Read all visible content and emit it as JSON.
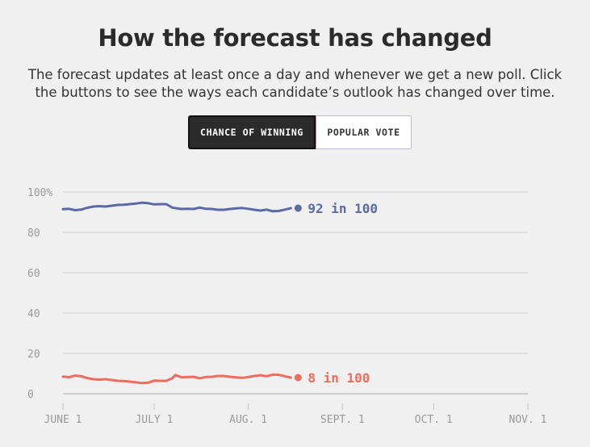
{
  "title": "How the forecast has changed",
  "subtitle": "The forecast updates at least once a day and whenever we get a new poll. Click the buttons to see the ways each candidate’s outlook has changed over time.",
  "toggle": {
    "options": [
      "CHANCE OF WINNING",
      "POPULAR VOTE"
    ],
    "selected": "CHANCE OF WINNING"
  },
  "colors": {
    "blue": "#5a6aa8",
    "red": "#ef6b5e",
    "grid": "#d6d6d6"
  },
  "chart_data": {
    "type": "line",
    "title": "",
    "xlabel": "",
    "ylabel": "",
    "ylim": [
      0,
      100
    ],
    "xlim": [
      "2020-06-01",
      "2020-11-01"
    ],
    "y_ticks": [
      0,
      20,
      40,
      60,
      80,
      100
    ],
    "y_tick_labels": [
      "0",
      "20",
      "40",
      "60",
      "80",
      "100%"
    ],
    "x_ticks": [
      "2020-06-01",
      "2020-07-01",
      "2020-08-01",
      "2020-09-01",
      "2020-10-01",
      "2020-11-01"
    ],
    "x_tick_labels": [
      "JUNE 1",
      "JULY 1",
      "AUG. 1",
      "SEPT. 1",
      "OCT. 1",
      "NOV. 1"
    ],
    "grid": true,
    "legend": "none",
    "series": [
      {
        "color": "#5a6aa8",
        "end_label": "92 in 100",
        "x": [
          "2020-06-01",
          "2020-06-03",
          "2020-06-05",
          "2020-06-07",
          "2020-06-09",
          "2020-06-11",
          "2020-06-13",
          "2020-06-15",
          "2020-06-17",
          "2020-06-19",
          "2020-06-21",
          "2020-06-23",
          "2020-06-25",
          "2020-06-27",
          "2020-06-29",
          "2020-07-01",
          "2020-07-03",
          "2020-07-05",
          "2020-07-07",
          "2020-07-09",
          "2020-07-10",
          "2020-07-12",
          "2020-07-14",
          "2020-07-16",
          "2020-07-18",
          "2020-07-20",
          "2020-07-22",
          "2020-07-24",
          "2020-07-26",
          "2020-07-28",
          "2020-07-30",
          "2020-08-01",
          "2020-08-03",
          "2020-08-05",
          "2020-08-07",
          "2020-08-09",
          "2020-08-11",
          "2020-08-13",
          "2020-08-15"
        ],
        "values": [
          91.5,
          91.7,
          91.0,
          91.3,
          92.2,
          92.8,
          93.0,
          92.8,
          93.2,
          93.6,
          93.7,
          94.0,
          94.3,
          94.7,
          94.5,
          93.9,
          94.0,
          94.0,
          92.3,
          91.8,
          91.6,
          91.7,
          91.6,
          92.3,
          91.7,
          91.6,
          91.2,
          91.2,
          91.6,
          91.9,
          92.1,
          91.7,
          91.2,
          90.8,
          91.3,
          90.5,
          90.6,
          91.3,
          92.0
        ]
      },
      {
        "color": "#ef6b5e",
        "end_label": "8 in 100",
        "x": [
          "2020-06-01",
          "2020-06-03",
          "2020-06-05",
          "2020-06-07",
          "2020-06-09",
          "2020-06-11",
          "2020-06-13",
          "2020-06-15",
          "2020-06-17",
          "2020-06-19",
          "2020-06-21",
          "2020-06-23",
          "2020-06-25",
          "2020-06-27",
          "2020-06-29",
          "2020-07-01",
          "2020-07-03",
          "2020-07-05",
          "2020-07-07",
          "2020-07-08",
          "2020-07-10",
          "2020-07-12",
          "2020-07-14",
          "2020-07-16",
          "2020-07-18",
          "2020-07-20",
          "2020-07-22",
          "2020-07-24",
          "2020-07-26",
          "2020-07-28",
          "2020-07-30",
          "2020-08-01",
          "2020-08-03",
          "2020-08-05",
          "2020-08-07",
          "2020-08-09",
          "2020-08-11",
          "2020-08-13",
          "2020-08-15"
        ],
        "values": [
          8.5,
          8.2,
          9.0,
          8.7,
          7.8,
          7.2,
          7.0,
          7.2,
          6.8,
          6.4,
          6.3,
          6.0,
          5.7,
          5.3,
          5.5,
          6.5,
          6.4,
          6.4,
          7.7,
          9.3,
          8.2,
          8.3,
          8.4,
          7.7,
          8.3,
          8.4,
          8.8,
          8.8,
          8.4,
          8.1,
          7.9,
          8.3,
          8.8,
          9.2,
          8.7,
          9.5,
          9.4,
          8.7,
          8.0
        ]
      }
    ]
  }
}
